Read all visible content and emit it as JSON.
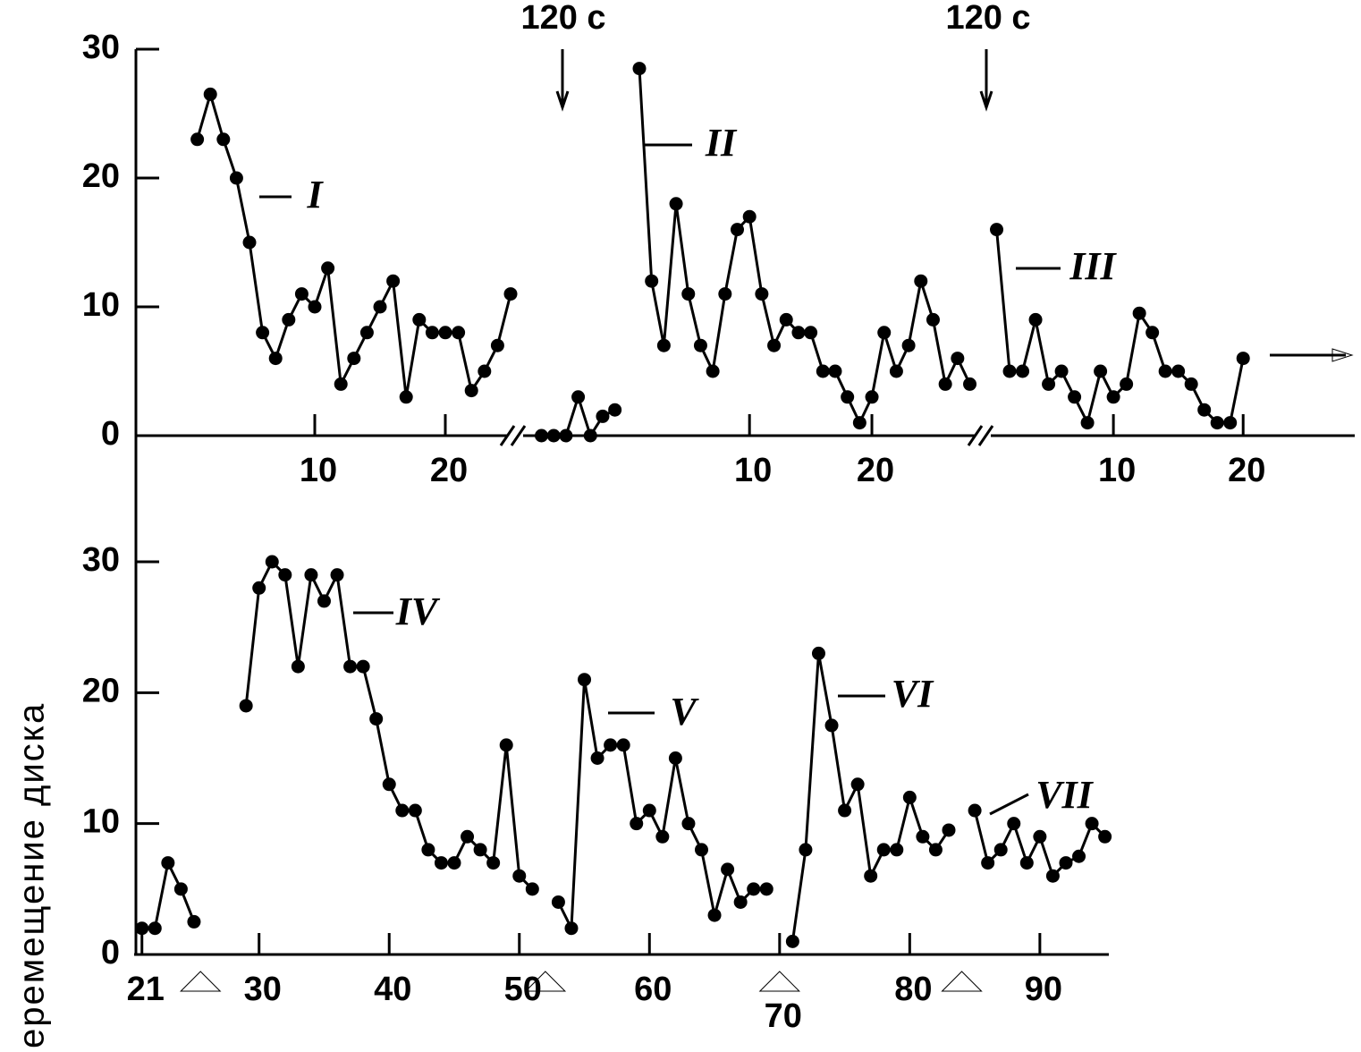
{
  "chart_data": [
    {
      "type": "line",
      "color": "#000000",
      "annotations": [
        "120 с",
        "120 с"
      ],
      "ylim": [
        0,
        30
      ],
      "yticks": [
        0,
        10,
        20,
        30
      ],
      "segments": [
        {
          "xlim": [
            -3.7,
            25
          ],
          "xticks": [
            10,
            20
          ],
          "series": [
            {
              "name": "I",
              "x": [
                1,
                2,
                3,
                4,
                5,
                6,
                7,
                8,
                9,
                10,
                11,
                12,
                13,
                14,
                15,
                16,
                17,
                18,
                19,
                20,
                21,
                22,
                23,
                24,
                25
              ],
              "values": [
                23,
                26.5,
                23,
                20,
                15,
                8,
                6,
                9,
                11,
                10,
                13,
                4,
                6,
                8,
                10,
                12,
                3,
                9,
                8,
                8,
                8,
                3.5,
                5,
                7,
                11
              ]
            }
          ]
        },
        {
          "xlim": [
            -8.5,
            28.4
          ],
          "xticks": [
            10,
            20
          ],
          "series": [
            {
              "x": [
                -7,
                -6,
                -5,
                -4,
                -3,
                -2,
                -1
              ],
              "values": [
                0,
                0,
                0,
                3,
                0,
                1.5,
                2
              ]
            },
            {
              "name": "II",
              "x": [
                1,
                2,
                3,
                4,
                5,
                6,
                7,
                8,
                9,
                10,
                11,
                12,
                13,
                14,
                15,
                16,
                17,
                18,
                19,
                20,
                21,
                22,
                23,
                24,
                25,
                26,
                27,
                28
              ],
              "values": [
                28.5,
                12,
                7,
                18,
                11,
                7,
                5,
                11,
                16,
                17,
                11,
                7,
                9,
                8,
                8,
                5,
                5,
                3,
                1,
                3,
                8,
                5,
                7,
                12,
                9,
                4,
                6,
                4
              ]
            }
          ]
        },
        {
          "xlim": [
            0.55,
            28.6
          ],
          "xticks": [
            10,
            20
          ],
          "series": [
            {
              "name": "III",
              "x": [
                1,
                2,
                3,
                4,
                5,
                6,
                7,
                8,
                9,
                10,
                11,
                12,
                13,
                14,
                15,
                16,
                17,
                18,
                19,
                20
              ],
              "values": [
                16,
                5,
                5,
                9,
                4,
                5,
                3,
                1,
                5,
                3,
                4,
                9.5,
                8,
                5,
                5,
                4,
                2,
                1,
                1,
                6
              ]
            }
          ]
        }
      ]
    },
    {
      "type": "line",
      "color": "#000000",
      "y_label": "еремещение диска",
      "xlim": [
        20.4,
        95.3
      ],
      "xticks": [
        21,
        30,
        40,
        50,
        60,
        70,
        80,
        90
      ],
      "ylim": [
        0,
        30
      ],
      "yticks": [
        0,
        10,
        20,
        30
      ],
      "pause_markers": [
        25.5,
        52,
        70,
        84
      ],
      "series": [
        {
          "x": [
            21,
            22,
            23,
            24,
            25
          ],
          "values": [
            2,
            2,
            7,
            5,
            2.5
          ]
        },
        {
          "name": "IV",
          "x": [
            29,
            30,
            31,
            32,
            33,
            34,
            35,
            36,
            37,
            38,
            39,
            40,
            41,
            42,
            43,
            44,
            45,
            46,
            47,
            48,
            49,
            50,
            51
          ],
          "values": [
            19,
            28,
            30,
            29,
            22,
            29,
            27,
            29,
            22,
            22,
            18,
            13,
            11,
            11,
            8,
            7,
            7,
            9,
            8,
            7,
            16,
            6,
            5
          ]
        },
        {
          "name": "V",
          "x": [
            53,
            54,
            55,
            56,
            57,
            58,
            59,
            60,
            61,
            62,
            63,
            64,
            65,
            66,
            67,
            68,
            69
          ],
          "values": [
            4,
            2,
            21,
            15,
            16,
            16,
            10,
            11,
            9,
            15,
            10,
            8,
            3,
            6.5,
            4,
            5,
            5
          ]
        },
        {
          "name": "VI",
          "x": [
            71,
            72,
            73,
            74,
            75,
            76,
            77,
            78,
            79,
            80,
            81,
            82,
            83
          ],
          "values": [
            1,
            8,
            23,
            17.5,
            11,
            13,
            6,
            8,
            8,
            12,
            9,
            8,
            9.5
          ]
        },
        {
          "name": "VII",
          "x": [
            85,
            86,
            87,
            88,
            89,
            90,
            91,
            92,
            93,
            94,
            95
          ],
          "values": [
            11,
            7,
            8,
            10,
            7,
            9,
            6,
            7,
            7.5,
            10,
            9
          ]
        }
      ]
    }
  ]
}
